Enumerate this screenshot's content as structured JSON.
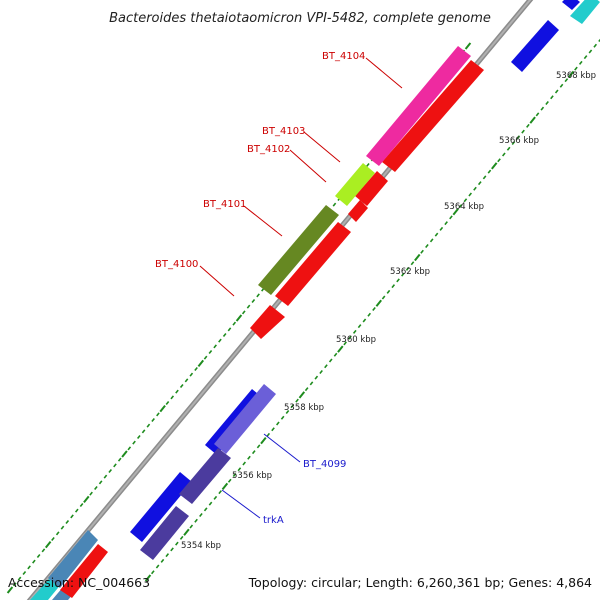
{
  "title": "Bacteroides thetaiotaomicron VPI-5482, complete genome",
  "footer": {
    "accession": "Accession: NC_004663",
    "summary": "Topology: circular; Length: 6,260,361 bp; Genes: 4,864"
  },
  "scale_labels": [
    "5354 kbp",
    "5356 kbp",
    "5358 kbp",
    "5360 kbp",
    "5362 kbp",
    "5364 kbp",
    "5366 kbp",
    "5368 kbp"
  ],
  "gene_labels": {
    "bt4104": "BT_4104",
    "bt4103": "BT_4103",
    "bt4102": "BT_4102",
    "bt4101": "BT_4101",
    "bt4100": "BT_4100",
    "bt4099": "BT_4099",
    "trkA": "trkA"
  },
  "colors": {
    "label_red": "#cc0000",
    "label_blue": "#1a1acc",
    "backbone": "#8c8c8c",
    "tick_green": "#1e8c1e",
    "gene_red": "#ee1111",
    "gene_blue": "#1010e0",
    "gene_magenta": "#ee2aa0",
    "gene_lime": "#aaee22",
    "gene_olive": "#668822",
    "gene_slate": "#4b3b9e",
    "gene_steel": "#4a86b6",
    "gene_cyan": "#22cccc"
  }
}
